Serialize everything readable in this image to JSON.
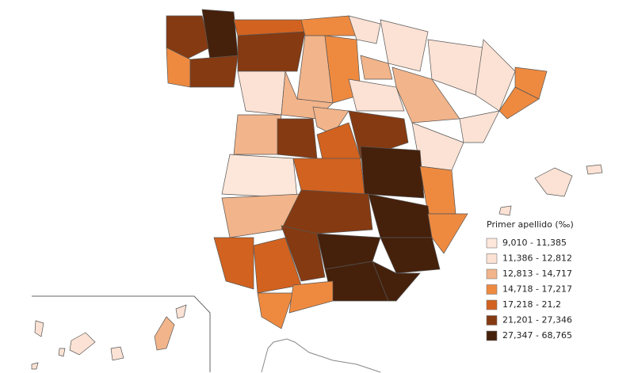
{
  "legend": {
    "title": "Primer apellido (‰)",
    "items": [
      {
        "label": "9,010 - 11,385",
        "color": "#fde7da"
      },
      {
        "label": "11,386 - 12,812",
        "color": "#fbe2d4"
      },
      {
        "label": "12,813 - 14,717",
        "color": "#f2b48a"
      },
      {
        "label": "14,718 - 17,217",
        "color": "#ee8a40"
      },
      {
        "label": "17,218 - 21,2",
        "color": "#d2621f"
      },
      {
        "label": "21,201 - 27,346",
        "color": "#853a12"
      },
      {
        "label": "27,347 - 68,765",
        "color": "#45200b"
      }
    ]
  }
}
